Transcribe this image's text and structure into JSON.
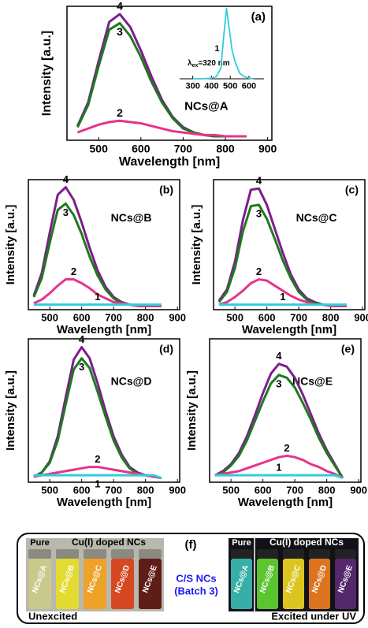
{
  "chart_data": [
    {
      "type": "line",
      "panel_label": "(a)",
      "sample_label": "NCs@A",
      "xlabel": "Wavelength [nm]",
      "ylabel": "Intensity [a.u.]",
      "x": [
        450,
        475,
        500,
        525,
        550,
        575,
        600,
        625,
        650,
        675,
        700,
        725,
        750,
        775,
        800,
        825,
        850
      ],
      "xlim": [
        425,
        910
      ],
      "xticks": [
        500,
        600,
        700,
        800,
        900
      ],
      "ylim": [
        -3,
        100
      ],
      "series": [
        {
          "name": "4",
          "color": "#7b1f8a",
          "values": [
            8,
            26,
            58,
            88,
            94,
            84,
            66,
            46,
            28,
            15,
            7,
            3,
            1,
            0,
            0,
            0,
            0
          ]
        },
        {
          "name": "3",
          "color": "#1e7a1e",
          "values": [
            7,
            24,
            54,
            82,
            87,
            77,
            61,
            42,
            26,
            14,
            6,
            3,
            1,
            0,
            0,
            0,
            0
          ]
        },
        {
          "name": "2",
          "color": "#e6338a",
          "values": [
            3,
            6,
            9,
            11,
            12,
            11,
            10,
            8,
            6,
            4,
            3,
            2,
            1,
            1,
            0,
            0,
            0
          ]
        }
      ]
    },
    {
      "type": "line",
      "annotation": {
        "symbol": "λ",
        "subscript": "ex",
        "text": "=320 nm"
      },
      "x": [
        300,
        350,
        400,
        425,
        450,
        465,
        480,
        495,
        510,
        525,
        550,
        575,
        600,
        625
      ],
      "xlim": [
        230,
        680
      ],
      "xticks": [
        300,
        400,
        500,
        600
      ],
      "ylim": [
        0,
        105
      ],
      "series": [
        {
          "name": "1",
          "color": "#33ccdd",
          "values": [
            0,
            0,
            1,
            3,
            15,
            60,
            100,
            70,
            40,
            25,
            8,
            3,
            1,
            0
          ]
        }
      ]
    },
    {
      "type": "line",
      "panel_label": "(b)",
      "sample_label": "NCs@B",
      "xlabel": "Wavelength [nm]",
      "ylabel": "Intensity [a.u.]",
      "x": [
        450,
        475,
        500,
        525,
        550,
        575,
        600,
        625,
        650,
        675,
        700,
        725,
        750,
        775,
        800,
        825,
        850
      ],
      "xlim": [
        433,
        907
      ],
      "xticks": [
        500,
        600,
        700,
        800,
        900
      ],
      "ylim": [
        -3,
        100
      ],
      "series": [
        {
          "name": "4",
          "color": "#7b1f8a",
          "values": [
            8,
            26,
            58,
            88,
            94,
            84,
            66,
            46,
            28,
            15,
            7,
            3,
            1,
            0,
            0,
            0,
            0
          ]
        },
        {
          "name": "3",
          "color": "#1e7a1e",
          "values": [
            7,
            22,
            50,
            76,
            81,
            72,
            57,
            39,
            24,
            13,
            6,
            2,
            1,
            0,
            0,
            0,
            0
          ]
        },
        {
          "name": "2",
          "color": "#e6338a",
          "values": [
            2,
            5,
            10,
            16,
            21,
            21,
            18,
            14,
            9,
            6,
            3,
            2,
            1,
            0,
            0,
            0,
            0
          ]
        },
        {
          "name": "1",
          "color": "#33ccdd",
          "values": [
            1,
            1,
            1,
            1,
            1,
            1,
            1,
            1,
            1,
            1,
            1,
            1,
            1,
            1,
            1,
            1,
            1
          ]
        }
      ]
    },
    {
      "type": "line",
      "panel_label": "(c)",
      "sample_label": "NCs@C",
      "xlabel": "Wavelength [nm]",
      "ylabel": "Intensity [a.u.]",
      "x": [
        450,
        475,
        500,
        525,
        550,
        575,
        600,
        625,
        650,
        675,
        700,
        725,
        750,
        775,
        800,
        825,
        850
      ],
      "xlim": [
        433,
        907
      ],
      "xticks": [
        500,
        600,
        700,
        800,
        900
      ],
      "ylim": [
        -3,
        100
      ],
      "series": [
        {
          "name": "4",
          "color": "#7b1f8a",
          "values": [
            4,
            13,
            35,
            68,
            92,
            93,
            80,
            61,
            42,
            25,
            13,
            6,
            3,
            1,
            0,
            0,
            0
          ]
        },
        {
          "name": "3",
          "color": "#1e7a1e",
          "values": [
            3,
            11,
            30,
            59,
            79,
            80,
            69,
            53,
            36,
            22,
            11,
            5,
            2,
            1,
            0,
            0,
            0
          ]
        },
        {
          "name": "2",
          "color": "#e6338a",
          "values": [
            1,
            3,
            7,
            12,
            18,
            21,
            20,
            16,
            12,
            8,
            5,
            3,
            1,
            1,
            0,
            0,
            0
          ]
        },
        {
          "name": "1",
          "color": "#33ccdd",
          "values": [
            1,
            1,
            1,
            1,
            1,
            1,
            1,
            1,
            1,
            1,
            1,
            1,
            1,
            1,
            1,
            1,
            1
          ]
        }
      ]
    },
    {
      "type": "line",
      "panel_label": "(d)",
      "sample_label": "NCs@D",
      "xlabel": "Wavelength [nm]",
      "ylabel": "Intensity [a.u.]",
      "x": [
        450,
        475,
        500,
        525,
        550,
        575,
        600,
        625,
        650,
        675,
        700,
        725,
        750,
        775,
        800,
        825,
        850
      ],
      "xlim": [
        433,
        907
      ],
      "xticks": [
        500,
        600,
        700,
        800,
        900
      ],
      "ylim": [
        -3,
        100
      ],
      "series": [
        {
          "name": "4",
          "color": "#7b1f8a",
          "values": [
            1,
            4,
            12,
            30,
            58,
            85,
            94,
            86,
            68,
            48,
            30,
            17,
            8,
            4,
            2,
            1,
            0
          ]
        },
        {
          "name": "3",
          "color": "#1e7a1e",
          "values": [
            1,
            4,
            11,
            27,
            53,
            78,
            86,
            79,
            62,
            44,
            27,
            15,
            7,
            3,
            2,
            1,
            0
          ]
        },
        {
          "name": "2",
          "color": "#e6338a",
          "values": [
            1,
            2,
            3,
            4,
            5,
            6,
            7,
            8,
            8,
            7,
            6,
            5,
            4,
            3,
            2,
            1,
            0
          ]
        },
        {
          "name": "1",
          "color": "#33ccdd",
          "values": [
            2,
            2,
            2,
            2,
            2,
            2,
            2,
            2,
            2,
            2,
            2,
            2,
            2,
            2,
            2,
            2,
            0
          ]
        }
      ]
    },
    {
      "type": "line",
      "panel_label": "(e)",
      "sample_label": "NCs@E",
      "xlabel": "Wavelength [nm]",
      "ylabel": "Intensity [a.u.]",
      "x": [
        450,
        475,
        500,
        525,
        550,
        575,
        600,
        625,
        650,
        675,
        700,
        725,
        750,
        775,
        800,
        825,
        850
      ],
      "xlim": [
        433,
        907
      ],
      "xticks": [
        500,
        600,
        700,
        800,
        900
      ],
      "ylim": [
        -3,
        100
      ],
      "series": [
        {
          "name": "4",
          "color": "#7b1f8a",
          "values": [
            2,
            5,
            10,
            18,
            30,
            45,
            61,
            75,
            82,
            80,
            72,
            60,
            46,
            32,
            20,
            10,
            0
          ]
        },
        {
          "name": "3",
          "color": "#1e7a1e",
          "values": [
            2,
            4,
            9,
            16,
            27,
            41,
            55,
            68,
            74,
            72,
            65,
            54,
            42,
            29,
            18,
            9,
            0
          ]
        },
        {
          "name": "2",
          "color": "#e6338a",
          "values": [
            2,
            3,
            4,
            5,
            7,
            9,
            11,
            13,
            15,
            16,
            15,
            13,
            10,
            8,
            5,
            3,
            0
          ]
        },
        {
          "name": "1",
          "color": "#33ccdd",
          "values": [
            2,
            2,
            2,
            2,
            2,
            2,
            2,
            2,
            2,
            2,
            2,
            2,
            2,
            2,
            2,
            2,
            0
          ]
        }
      ]
    }
  ],
  "photo": {
    "panel_label": "(f)",
    "center_label": "C/S NCs",
    "center_sublabel": "(Batch 3)",
    "left": {
      "pure": "Pure",
      "doped": "Cu(I) doped NCs",
      "caption": "Unexcited",
      "vials": [
        {
          "label": "NCs@A",
          "color": "#c9c98a"
        },
        {
          "label": "NCs@B",
          "color": "#e5dc2a"
        },
        {
          "label": "NCs@C",
          "color": "#f0a020"
        },
        {
          "label": "NCs@D",
          "color": "#d8401a"
        },
        {
          "label": "NCs@E",
          "color": "#5a1410"
        }
      ]
    },
    "right": {
      "pure": "Pure",
      "doped": "Cu(I) doped NCs",
      "caption": "Excited under UV",
      "vials": [
        {
          "label": "NCs@A",
          "color": "#3ab8b0"
        },
        {
          "label": "NCs@B",
          "color": "#60d030"
        },
        {
          "label": "NCs@C",
          "color": "#e8d020"
        },
        {
          "label": "NCs@D",
          "color": "#e87a20"
        },
        {
          "label": "NCs@E",
          "color": "#5a2a70"
        }
      ]
    }
  }
}
